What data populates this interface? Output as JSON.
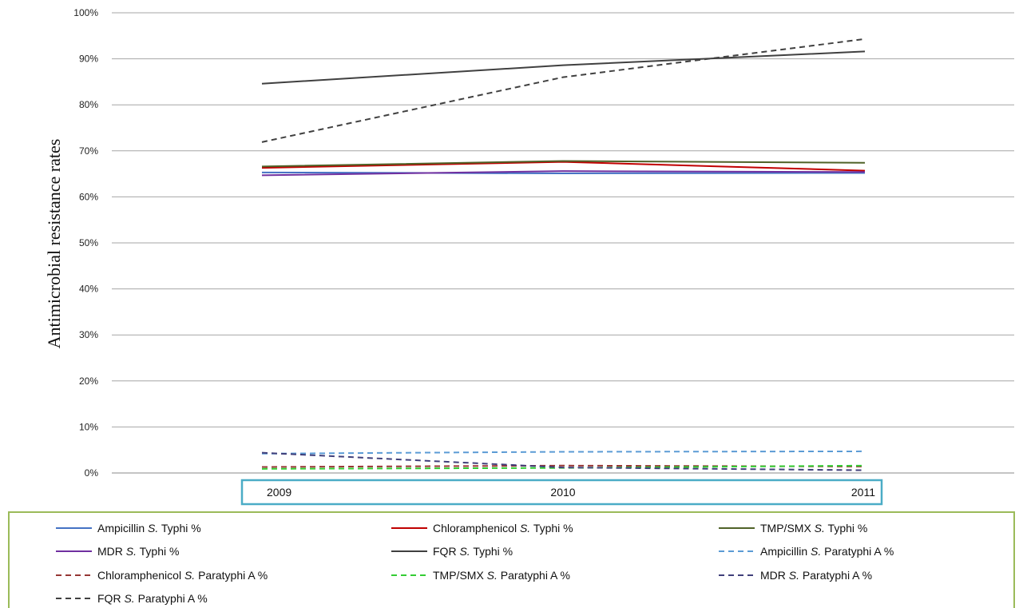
{
  "chart_data": {
    "type": "line",
    "ylabel": "Antimicrobial resistance rates",
    "xlabel": "",
    "categories": [
      "2009",
      "2010",
      "2011"
    ],
    "y_ticks": [
      "0%",
      "10%",
      "20%",
      "30%",
      "40%",
      "50%",
      "60%",
      "70%",
      "80%",
      "90%",
      "100%"
    ],
    "ylim": [
      0,
      100
    ],
    "grid": true,
    "legend_placement": "bottom",
    "series": [
      {
        "name": "Ampicillin S. Typhi %",
        "pre": "Ampicillin ",
        "species": "S.",
        "post": " Typhi  %",
        "color": "#4472c4",
        "dash": false,
        "values": [
          65.3,
          65.1,
          65.2
        ]
      },
      {
        "name": "Chloramphenicol S. Typhi %",
        "pre": "Chloramphenicol ",
        "species": "S.",
        "post": " Typhi  %",
        "color": "#c00000",
        "dash": false,
        "values": [
          66.3,
          67.6,
          65.7
        ]
      },
      {
        "name": "TMP/SMX S. Typhi %",
        "pre": "TMP/SMX ",
        "species": "S.",
        "post": " Typhi  %",
        "color": "#4f6228",
        "dash": false,
        "values": [
          66.6,
          67.8,
          67.4
        ]
      },
      {
        "name": "MDR S. Typhi %",
        "pre": "MDR ",
        "species": "S.",
        "post": " Typhi  %",
        "color": "#7030a0",
        "dash": false,
        "values": [
          64.7,
          65.6,
          65.4
        ]
      },
      {
        "name": "FQR S. Typhi %",
        "pre": "FQR ",
        "species": "S.",
        "post": " Typhi %",
        "color": "#404040",
        "dash": false,
        "values": [
          84.6,
          88.6,
          91.6
        ]
      },
      {
        "name": "Ampicillin S. Paratyphi A %",
        "pre": "Ampicillin  ",
        "species": "S.",
        "post": " Paratyphi A %",
        "color": "#5b9bd5",
        "dash": true,
        "values": [
          4.2,
          4.6,
          4.7
        ]
      },
      {
        "name": "Chloramphenicol S. Paratyphi A %",
        "pre": "Chloramphenicol  ",
        "species": "S.",
        "post": "  Paratyphi A %",
        "color": "#963634",
        "dash": true,
        "values": [
          1.3,
          1.6,
          1.4
        ]
      },
      {
        "name": "TMP/SMX S. Paratyphi A %",
        "pre": "TMP/SMX  ",
        "species": "S.",
        "post": "  Paratyphi A %",
        "color": "#33cc33",
        "dash": true,
        "values": [
          0.9,
          1.1,
          1.6
        ]
      },
      {
        "name": "MDR S. Paratyphi A %",
        "pre": "MDR ",
        "species": "S.",
        "post": " Paratyphi A %",
        "color": "#403f7a",
        "dash": true,
        "values": [
          4.4,
          1.2,
          0.6
        ]
      },
      {
        "name": "FQR S. Paratyphi A %",
        "pre": "FQR ",
        "species": "S.",
        "post": " Paratyphi A %",
        "color": "#404040",
        "dash": true,
        "values": [
          71.9,
          86.0,
          94.3
        ]
      }
    ]
  }
}
